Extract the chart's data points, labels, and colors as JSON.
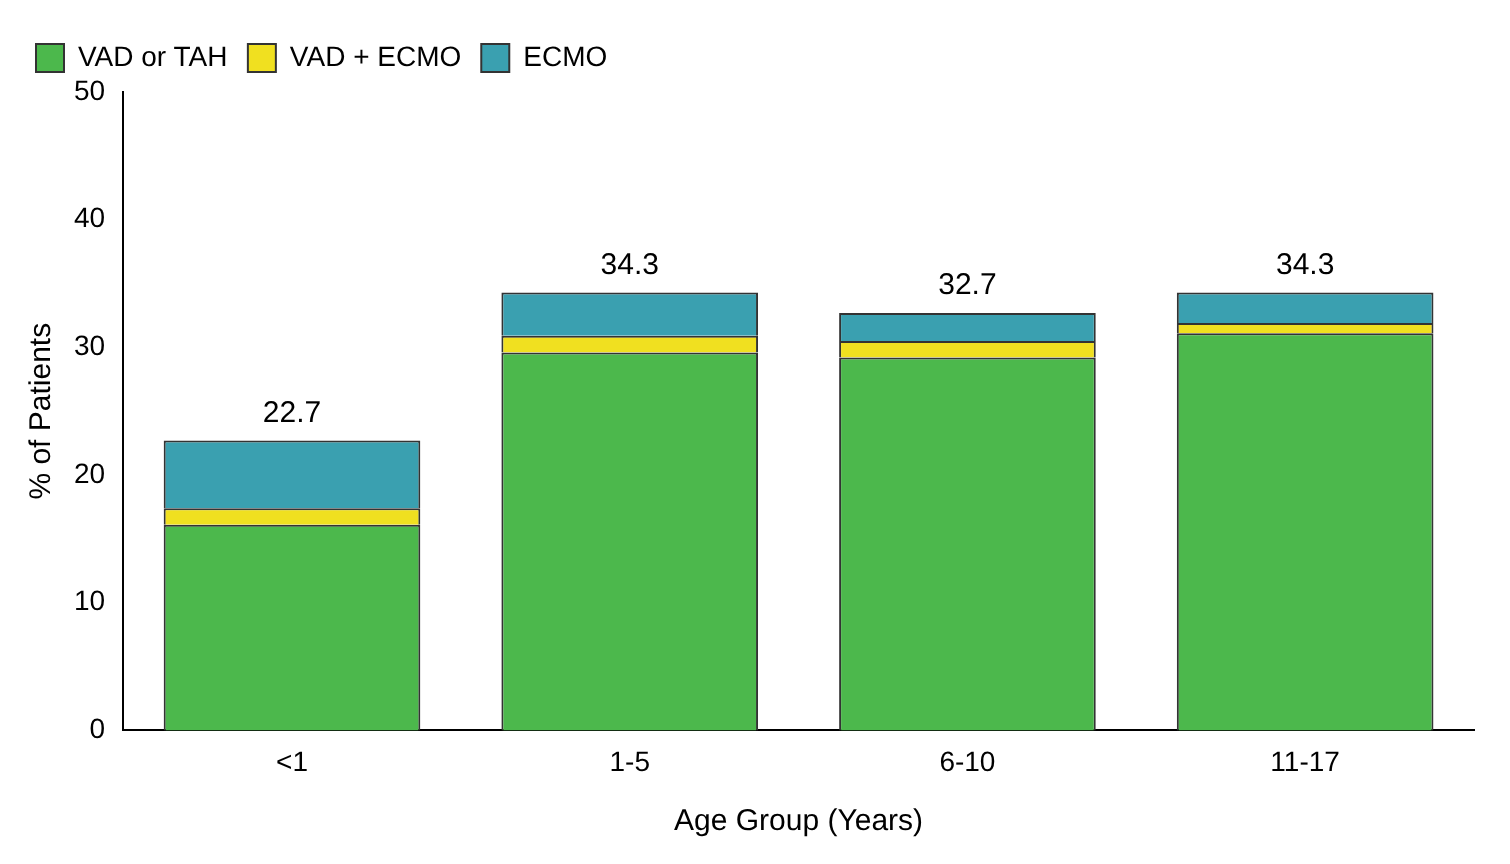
{
  "chart_data": {
    "type": "bar",
    "stacked": true,
    "xlabel": "Age Group (Years)",
    "ylabel": "% of Patients",
    "categories": [
      "<1",
      "1-5",
      "6-10",
      "11-17"
    ],
    "series": [
      {
        "name": "VAD or TAH",
        "color": "#4cb84c",
        "values": [
          16.1,
          29.6,
          29.2,
          31.1
        ]
      },
      {
        "name": "VAD + ECMO",
        "color": "#f0e020",
        "values": [
          1.3,
          1.3,
          1.3,
          0.8
        ]
      },
      {
        "name": "ECMO",
        "color": "#3aa0b0",
        "values": [
          5.3,
          3.4,
          2.2,
          2.4
        ]
      }
    ],
    "totals": [
      "22.7",
      "34.3",
      "32.7",
      "34.3"
    ],
    "ylim": [
      0,
      50
    ],
    "yticks": [
      0,
      10,
      20,
      30,
      40,
      50
    ],
    "grid": false,
    "legend": "top left"
  }
}
